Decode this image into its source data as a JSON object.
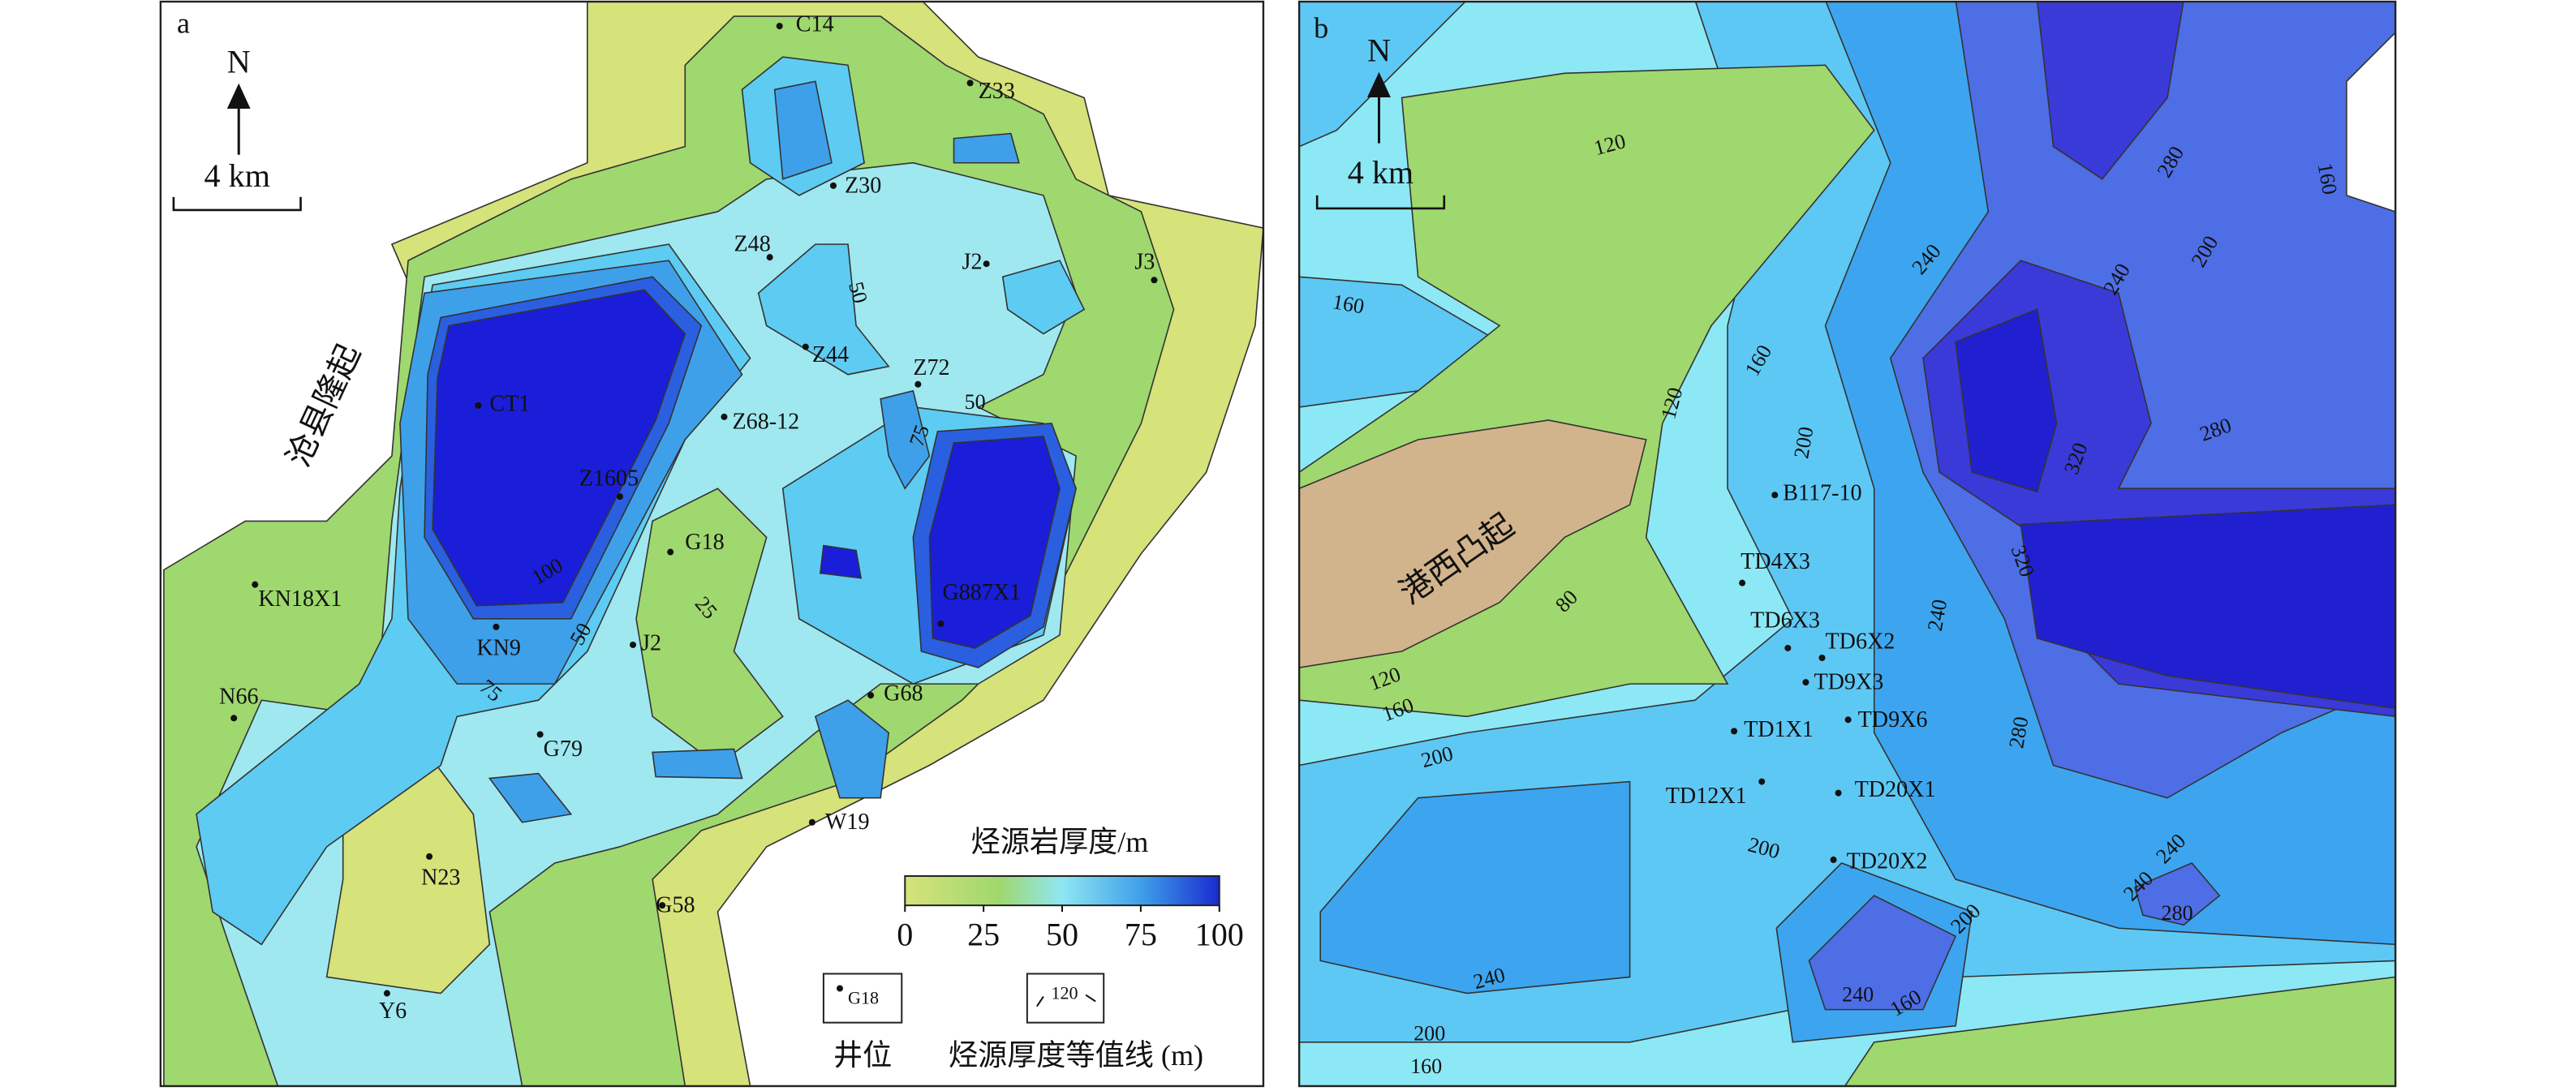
{
  "panel_a": {
    "label": "a",
    "north": "N",
    "scale": "4 km",
    "uplift": "沧县隆起",
    "wells": [
      "C14",
      "Z33",
      "Z30",
      "Z48",
      "J2",
      "J3",
      "Z44",
      "Z72",
      "CT1",
      "Z68-12",
      "Z1605",
      "G18",
      "KN18X1",
      "G887X1",
      "KN9",
      "J2",
      "N66",
      "G68",
      "G79",
      "W19",
      "N23",
      "G58",
      "Y6"
    ],
    "contour_labels": [
      50,
      50,
      75,
      100,
      25,
      50,
      75
    ],
    "legend": {
      "title": "烃源岩厚度/m",
      "ticks": [
        0,
        25,
        50,
        75,
        100
      ],
      "well_sample": "G18",
      "contour_sample": 120,
      "well_caption": "井位",
      "contour_caption": "烃源厚度等值线 (m)"
    }
  },
  "panel_b": {
    "label": "b",
    "north": "N",
    "scale": "4 km",
    "uplift": "港西凸起",
    "wells": [
      "B117-10",
      "TD4X3",
      "TD6X3",
      "TD6X2",
      "TD9X3",
      "TD1X1",
      "TD9X6",
      "TD12X1",
      "TD20X1",
      "TD20X2"
    ],
    "contour_labels": [
      120,
      160,
      120,
      160,
      200,
      240,
      240,
      200,
      280,
      160,
      280,
      320,
      320,
      280,
      240,
      80,
      120,
      160,
      200,
      200,
      240,
      240,
      280,
      200,
      240,
      240,
      160,
      200,
      160
    ]
  }
}
